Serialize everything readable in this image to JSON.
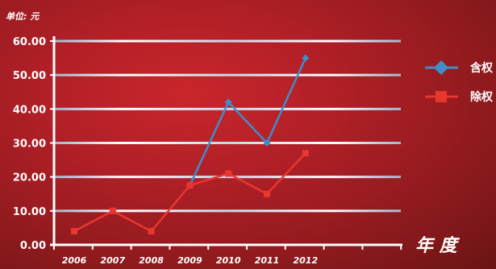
{
  "chart_data": {
    "type": "line",
    "unit_label": "单位: 元",
    "xlabel": "年 度",
    "ylabel": "",
    "title": "",
    "categories": [
      "2006",
      "2007",
      "2008",
      "2009",
      "2010",
      "2011",
      "2012"
    ],
    "y_ticks": [
      "0.00",
      "10.00",
      "20.00",
      "30.00",
      "40.00",
      "50.00",
      "60.00"
    ],
    "ylim": [
      0,
      60
    ],
    "grid": true,
    "legend_position": "right",
    "series": [
      {
        "name": "含权",
        "color": "#3d8ec9",
        "marker": "diamond",
        "values": [
          null,
          null,
          null,
          17.5,
          42,
          30,
          55
        ]
      },
      {
        "name": "除权",
        "color": "#e8372f",
        "marker": "square",
        "values": [
          4,
          10,
          4,
          17.5,
          21,
          15,
          27
        ]
      }
    ]
  }
}
